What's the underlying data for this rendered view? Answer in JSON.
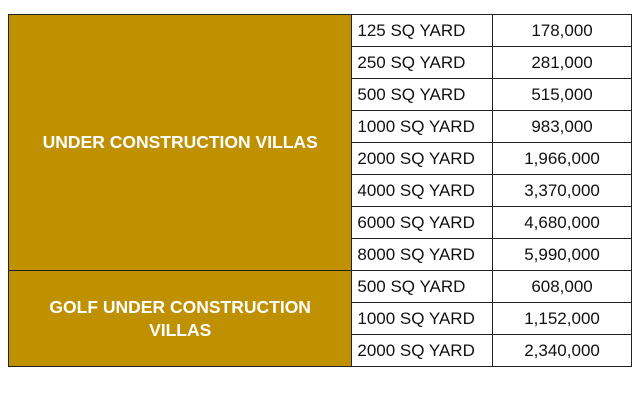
{
  "colors": {
    "category_fill": "#BF9000",
    "category_text": "#FFFFFF",
    "border": "#222222"
  },
  "groups": [
    {
      "category": "UNDER CONSTRUCTION VILLAS",
      "rows": [
        {
          "size": "125 SQ YARD",
          "price": "178,000"
        },
        {
          "size": "250 SQ YARD",
          "price": "281,000"
        },
        {
          "size": "500 SQ YARD",
          "price": "515,000"
        },
        {
          "size": "1000 SQ YARD",
          "price": "983,000"
        },
        {
          "size": "2000 SQ YARD",
          "price": "1,966,000"
        },
        {
          "size": "4000 SQ YARD",
          "price": "3,370,000"
        },
        {
          "size": "6000 SQ YARD",
          "price": "4,680,000"
        },
        {
          "size": "8000 SQ YARD",
          "price": "5,990,000"
        }
      ]
    },
    {
      "category": "GOLF UNDER CONSTRUCTION VILLAS",
      "rows": [
        {
          "size": "500 SQ YARD",
          "price": "608,000"
        },
        {
          "size": "1000 SQ YARD",
          "price": "1,152,000"
        },
        {
          "size": "2000 SQ YARD",
          "price": "2,340,000"
        }
      ]
    }
  ]
}
